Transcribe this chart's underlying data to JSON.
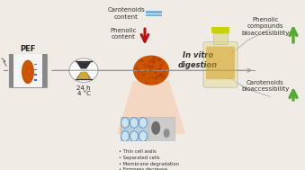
{
  "bg_color": "#f0ebe4",
  "pef_label": "PEF",
  "time_label1": "24 h",
  "time_label2": "4 °C",
  "carotenoids_content": "Carotenoids\ncontent",
  "phenolic_content": "Phenolic\ncontent",
  "in_vitro": "In vitro\ndigestion",
  "phenolic_bio": "Phenolic\ncompounds\nbioaccessibility",
  "carotenoids_bio": "Carotenoids\nbioaccessibility",
  "bullet_points": [
    "Thin cell walls",
    "Separated cells",
    "Membrane degradation",
    "Firmness decrease"
  ],
  "carrot_color": "#cc5500",
  "arrow_color": "#999999",
  "carotenoids_bar_color": "#7bafd4",
  "phenolic_arrow_color": "#bb1111",
  "bio_arrow_color": "#55aa33",
  "line_color": "#aaaaaa"
}
